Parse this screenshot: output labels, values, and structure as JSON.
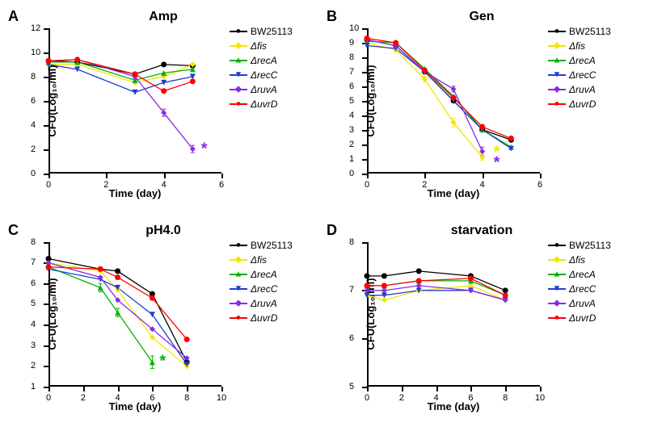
{
  "series_meta": [
    {
      "key": "BW25113",
      "label": "BW25113",
      "color": "#000000",
      "marker": "●",
      "italic": false
    },
    {
      "key": "fis",
      "label": "Δfis",
      "color": "#f2e600",
      "marker": "◆",
      "italic": true
    },
    {
      "key": "recA",
      "label": "ΔrecA",
      "color": "#00b300",
      "marker": "▲",
      "italic": true
    },
    {
      "key": "recC",
      "label": "ΔrecC",
      "color": "#1f3fcf",
      "marker": "▼",
      "italic": true
    },
    {
      "key": "ruvA",
      "label": "ΔruvA",
      "color": "#8a2be2",
      "marker": "◆",
      "italic": true
    },
    {
      "key": "uvrD",
      "label": "ΔuvrD",
      "color": "#ff0000",
      "marker": "●",
      "italic": true
    }
  ],
  "y_label": "CFU(Log₁₀/ml)",
  "x_label": "Time (day)",
  "panels": {
    "A": {
      "title": "Amp",
      "letter": "A",
      "show_legend": true,
      "ylim": [
        0,
        12
      ],
      "ytick_step": 2,
      "xlim": [
        0,
        6
      ],
      "xtick_step": 2,
      "series": {
        "BW25113": {
          "x": [
            0,
            1,
            3,
            4,
            5
          ],
          "y": [
            9.3,
            9.2,
            8.2,
            9.0,
            8.9
          ]
        },
        "fis": {
          "x": [
            0,
            1,
            3,
            4,
            5
          ],
          "y": [
            9.0,
            9.0,
            7.5,
            8.0,
            9.0
          ]
        },
        "recA": {
          "x": [
            0,
            1,
            3,
            4,
            5
          ],
          "y": [
            9.2,
            9.2,
            7.7,
            8.3,
            8.6
          ]
        },
        "recC": {
          "x": [
            0,
            1,
            3,
            4,
            5
          ],
          "y": [
            9.0,
            8.6,
            6.7,
            7.5,
            8.0
          ]
        },
        "ruvA": {
          "x": [
            0,
            1,
            3,
            4,
            5
          ],
          "y": [
            9.3,
            9.4,
            8.0,
            5.0,
            2.0
          ],
          "err": [
            0.1,
            0.1,
            0.2,
            0.3,
            0.3
          ]
        },
        "uvrD": {
          "x": [
            0,
            1,
            3,
            4,
            5
          ],
          "y": [
            9.3,
            9.4,
            8.2,
            6.8,
            7.6
          ]
        }
      },
      "sig": [
        {
          "color": "#8a2be2",
          "at_x": 5.4,
          "at_y": 2.0
        }
      ]
    },
    "B": {
      "title": "Gen",
      "letter": "B",
      "show_legend": true,
      "ylim": [
        0,
        10
      ],
      "ytick_step": 1,
      "xlim": [
        0,
        6
      ],
      "xtick_step": 2,
      "series": {
        "BW25113": {
          "x": [
            0,
            1,
            2,
            3,
            4,
            5
          ],
          "y": [
            9.2,
            8.8,
            7.0,
            5.0,
            3.0,
            2.3
          ]
        },
        "fis": {
          "x": [
            0,
            1,
            2,
            3,
            4
          ],
          "y": [
            9.0,
            8.5,
            6.5,
            3.5,
            1.1
          ],
          "err": [
            0.1,
            0.1,
            0.2,
            0.3,
            0.2
          ]
        },
        "recA": {
          "x": [
            0,
            1,
            2,
            3,
            4,
            5
          ],
          "y": [
            9.1,
            9.0,
            7.2,
            5.3,
            3.0,
            1.8
          ]
        },
        "recC": {
          "x": [
            0,
            1,
            2,
            3,
            4,
            5
          ],
          "y": [
            8.8,
            8.6,
            7.0,
            5.0,
            3.0,
            1.7
          ]
        },
        "ruvA": {
          "x": [
            0,
            1,
            2,
            3,
            4
          ],
          "y": [
            9.2,
            8.8,
            7.0,
            5.8,
            1.5
          ],
          "err": [
            0.1,
            0.1,
            0.1,
            0.2,
            0.3
          ]
        },
        "uvrD": {
          "x": [
            0,
            1,
            2,
            3,
            4,
            5
          ],
          "y": [
            9.3,
            9.0,
            7.1,
            5.2,
            3.2,
            2.4
          ]
        }
      },
      "sig": [
        {
          "color": "#f2e600",
          "at_x": 4.5,
          "at_y": 1.4
        },
        {
          "color": "#8a2be2",
          "at_x": 4.5,
          "at_y": 0.7
        }
      ]
    },
    "C": {
      "title": "pH4.0",
      "letter": "C",
      "show_legend": true,
      "ylim": [
        1,
        8
      ],
      "ytick_step": 1,
      "xlim": [
        0,
        10
      ],
      "xtick_step": 2,
      "series": {
        "BW25113": {
          "x": [
            0,
            3,
            4,
            6,
            8
          ],
          "y": [
            7.2,
            6.7,
            6.6,
            5.5,
            2.2
          ]
        },
        "fis": {
          "x": [
            0,
            3,
            4,
            6,
            8
          ],
          "y": [
            7.0,
            6.6,
            5.7,
            3.4,
            2.0
          ]
        },
        "recA": {
          "x": [
            0,
            3,
            4,
            6
          ],
          "y": [
            6.8,
            5.8,
            4.6,
            2.2
          ],
          "err": [
            0.1,
            0.2,
            0.2,
            0.3
          ]
        },
        "recC": {
          "x": [
            0,
            3,
            4,
            6,
            8
          ],
          "y": [
            6.7,
            6.2,
            5.8,
            4.5,
            2.1
          ]
        },
        "ruvA": {
          "x": [
            0,
            3,
            4,
            6,
            8
          ],
          "y": [
            7.0,
            6.3,
            5.2,
            3.8,
            2.4
          ]
        },
        "uvrD": {
          "x": [
            0,
            3,
            4,
            6,
            8
          ],
          "y": [
            6.8,
            6.7,
            6.3,
            5.3,
            3.3
          ]
        }
      },
      "sig": [
        {
          "color": "#00b300",
          "at_x": 6.6,
          "at_y": 2.2
        }
      ]
    },
    "D": {
      "title": "starvation",
      "letter": "D",
      "show_legend": true,
      "ylim": [
        5,
        8
      ],
      "ytick_step": 1,
      "xlim": [
        0,
        10
      ],
      "xtick_step": 2,
      "series": {
        "BW25113": {
          "x": [
            0,
            1,
            3,
            6,
            8
          ],
          "y": [
            7.3,
            7.3,
            7.4,
            7.3,
            7.0
          ]
        },
        "fis": {
          "x": [
            0,
            1,
            3,
            6,
            8
          ],
          "y": [
            6.9,
            6.8,
            7.0,
            7.1,
            6.8
          ]
        },
        "recA": {
          "x": [
            0,
            1,
            3,
            6,
            8
          ],
          "y": [
            7.1,
            7.1,
            7.2,
            7.2,
            6.9
          ]
        },
        "recC": {
          "x": [
            0,
            1,
            3,
            6,
            8
          ],
          "y": [
            6.9,
            6.9,
            7.0,
            7.0,
            6.8
          ]
        },
        "ruvA": {
          "x": [
            0,
            1,
            3,
            6,
            8
          ],
          "y": [
            7.0,
            7.0,
            7.1,
            7.0,
            6.8
          ]
        },
        "uvrD": {
          "x": [
            0,
            1,
            3,
            6,
            8
          ],
          "y": [
            7.1,
            7.1,
            7.2,
            7.25,
            6.9
          ]
        }
      },
      "sig": []
    }
  }
}
